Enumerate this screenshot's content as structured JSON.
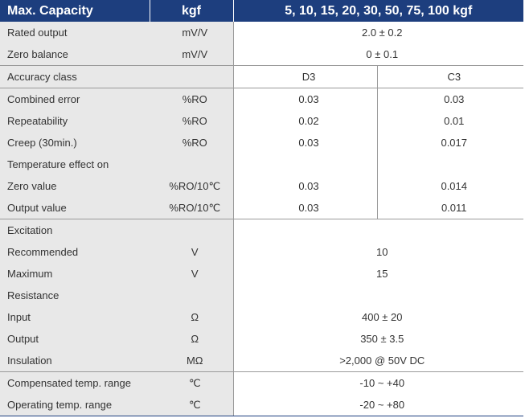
{
  "header": {
    "param": "Max. Capacity",
    "unit": "kgf",
    "values": "5, 10, 15, 20, 30, 50, 75, 100 kgf"
  },
  "rows": [
    {
      "param": "Rated output",
      "unit": "mV/V",
      "value": "2.0 ± 0.2"
    },
    {
      "param": "Zero balance",
      "unit": "mV/V",
      "value": "0 ± 0.1"
    },
    {
      "param": "Accuracy class",
      "unit": "",
      "d3": "D3",
      "c3": "C3"
    },
    {
      "param": "Combined error",
      "unit": "%RO",
      "d3": "0.03",
      "c3": "0.03"
    },
    {
      "param": "Repeatability",
      "unit": "%RO",
      "d3": "0.02",
      "c3": "0.01"
    },
    {
      "param": "Creep (30min.)",
      "unit": "%RO",
      "d3": "0.03",
      "c3": "0.017"
    },
    {
      "param": "Temperature effect on",
      "unit": ""
    },
    {
      "param": "Zero value",
      "unit": "%RO/10℃",
      "d3": "0.03",
      "c3": "0.014"
    },
    {
      "param": "Output  value",
      "unit": "%RO/10℃",
      "d3": "0.03",
      "c3": "0.011"
    },
    {
      "param": "Excitation",
      "unit": ""
    },
    {
      "param": "Recommended",
      "unit": "V",
      "value": "10"
    },
    {
      "param": "Maximum",
      "unit": "V",
      "value": "15"
    },
    {
      "param": "Resistance",
      "unit": ""
    },
    {
      "param": "Input",
      "unit": "Ω",
      "value": "400 ± 20"
    },
    {
      "param": "Output",
      "unit": "Ω",
      "value": "350 ± 3.5"
    },
    {
      "param": "Insulation",
      "unit": "MΩ",
      "value": ">2,000 @ 50V DC"
    },
    {
      "param": "Compensated temp. range",
      "unit": "℃",
      "value": "-10 ~ +40"
    },
    {
      "param": "Operating temp. range",
      "unit": "℃",
      "value": "-20 ~ +80"
    }
  ],
  "colors": {
    "header_bg": "#1d3e7e",
    "label_bg": "#e8e8e8",
    "text": "#333333"
  }
}
